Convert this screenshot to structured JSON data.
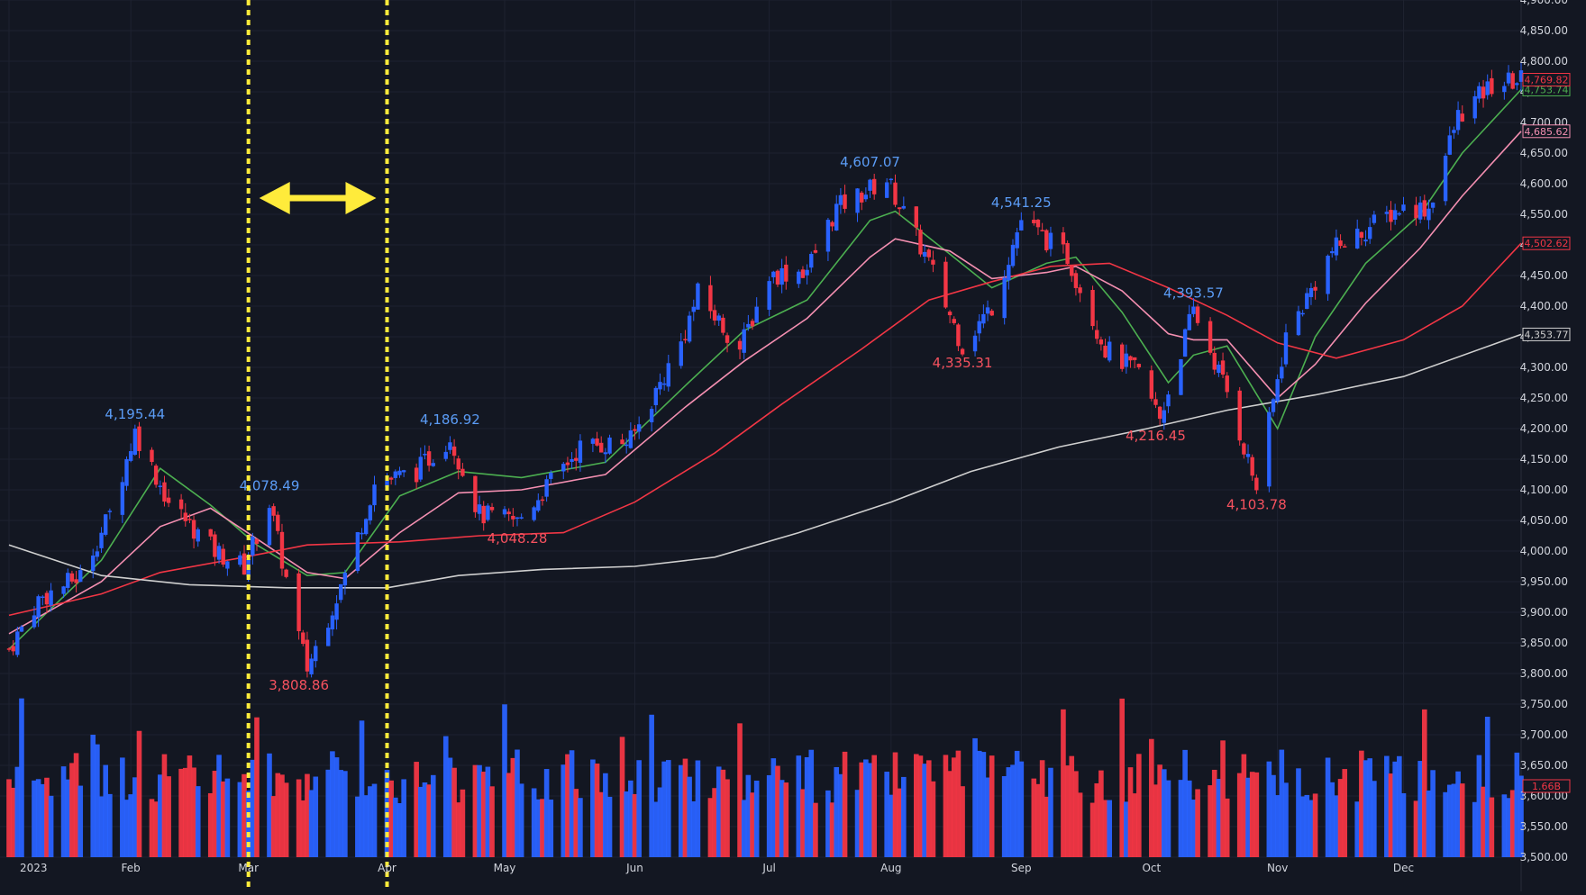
{
  "chart_data": {
    "type": "candlestick",
    "year_label": "2023",
    "x_labels": [
      "2023",
      "Feb",
      "Mar",
      "Apr",
      "May",
      "Jun",
      "Jul",
      "Aug",
      "Sep",
      "Oct",
      "Nov",
      "Dec"
    ],
    "month_starts": [
      "2023-01-03",
      "2023-02-01",
      "2023-03-01",
      "2023-04-03",
      "2023-05-01",
      "2023-06-01",
      "2023-07-03",
      "2023-08-01",
      "2023-09-01",
      "2023-10-02",
      "2023-11-01",
      "2023-12-01"
    ],
    "y_axis": {
      "ticks": [
        "3,500.00",
        "3,550.00",
        "3,600.00",
        "3,650.00",
        "3,700.00",
        "3,750.00",
        "3,800.00",
        "3,850.00",
        "3,900.00",
        "3,950.00",
        "4,000.00",
        "4,050.00",
        "4,100.00",
        "4,150.00",
        "4,200.00",
        "4,250.00",
        "4,300.00",
        "4,350.00",
        "4,400.00",
        "4,450.00",
        "4,500.00",
        "4,550.00",
        "4,600.00",
        "4,650.00",
        "4,700.00",
        "4,750.00",
        "4,800.00",
        "4,850.00",
        "4,900.00"
      ],
      "range": [
        3500,
        4900
      ]
    },
    "price_path_ohlc_closes": [
      [
        "2023-01-03",
        3840
      ],
      [
        "2023-01-10",
        3920
      ],
      [
        "2023-01-20",
        3960
      ],
      [
        "2023-01-27",
        4060
      ],
      [
        "2023-02-02",
        4195.44
      ],
      [
        "2023-02-10",
        4080
      ],
      [
        "2023-02-21",
        4000
      ],
      [
        "2023-02-28",
        3975
      ],
      [
        "2023-03-06",
        4078.49
      ],
      [
        "2023-03-13",
        3860
      ],
      [
        "2023-03-15",
        3808.86
      ],
      [
        "2023-03-24",
        3960
      ],
      [
        "2023-03-31",
        4110
      ],
      [
        "2023-04-10",
        4130
      ],
      [
        "2023-04-18",
        4186.92
      ],
      [
        "2023-04-25",
        4060
      ],
      [
        "2023-05-04",
        4048.28
      ],
      [
        "2023-05-19",
        4170
      ],
      [
        "2023-05-31",
        4180
      ],
      [
        "2023-06-12",
        4340
      ],
      [
        "2023-06-16",
        4420
      ],
      [
        "2023-06-26",
        4330
      ],
      [
        "2023-07-03",
        4450
      ],
      [
        "2023-07-12",
        4460
      ],
      [
        "2023-07-19",
        4560
      ],
      [
        "2023-07-31",
        4607.07
      ],
      [
        "2023-08-10",
        4470
      ],
      [
        "2023-08-18",
        4335.31
      ],
      [
        "2023-08-25",
        4400
      ],
      [
        "2023-09-01",
        4541.25
      ],
      [
        "2023-09-12",
        4480
      ],
      [
        "2023-09-21",
        4330
      ],
      [
        "2023-09-29",
        4290
      ],
      [
        "2023-10-04",
        4216.45
      ],
      [
        "2023-10-12",
        4393.57
      ],
      [
        "2023-10-20",
        4260
      ],
      [
        "2023-10-27",
        4103.78
      ],
      [
        "2023-11-03",
        4350
      ],
      [
        "2023-11-14",
        4490
      ],
      [
        "2023-11-30",
        4560
      ],
      [
        "2023-12-07",
        4560
      ],
      [
        "2023-12-14",
        4710
      ],
      [
        "2023-12-22",
        4760
      ],
      [
        "2023-12-29",
        4769.82
      ]
    ],
    "peak_trough_labels": [
      {
        "date": "2023-02-02",
        "value": 4195.44,
        "text": "4,195.44",
        "kind": "high"
      },
      {
        "date": "2023-03-06",
        "value": 4078.49,
        "text": "4,078.49",
        "kind": "high"
      },
      {
        "date": "2023-03-13",
        "value": 3808.86,
        "text": "3,808.86",
        "kind": "low"
      },
      {
        "date": "2023-04-18",
        "value": 4186.92,
        "text": "4,186.92",
        "kind": "high"
      },
      {
        "date": "2023-05-04",
        "value": 4048.28,
        "text": "4,048.28",
        "kind": "low"
      },
      {
        "date": "2023-07-27",
        "value": 4607.07,
        "text": "4,607.07",
        "kind": "high"
      },
      {
        "date": "2023-08-18",
        "value": 4335.31,
        "text": "4,335.31",
        "kind": "low"
      },
      {
        "date": "2023-09-01",
        "value": 4541.25,
        "text": "4,541.25",
        "kind": "high"
      },
      {
        "date": "2023-10-03",
        "value": 4216.45,
        "text": "4,216.45",
        "kind": "low"
      },
      {
        "date": "2023-10-12",
        "value": 4393.57,
        "text": "4,393.57",
        "kind": "high"
      },
      {
        "date": "2023-10-27",
        "value": 4103.78,
        "text": "4,103.78",
        "kind": "low"
      }
    ],
    "moving_averages": [
      {
        "color": "#4caf50",
        "last_label": "4,753.74",
        "points": [
          [
            "2023-01-03",
            3840
          ],
          [
            "2023-01-25",
            3985
          ],
          [
            "2023-02-08",
            4135
          ],
          [
            "2023-02-20",
            4075
          ],
          [
            "2023-03-03",
            4010
          ],
          [
            "2023-03-15",
            3960
          ],
          [
            "2023-03-24",
            3965
          ],
          [
            "2023-04-06",
            4090
          ],
          [
            "2023-04-20",
            4130
          ],
          [
            "2023-05-05",
            4120
          ],
          [
            "2023-05-25",
            4145
          ],
          [
            "2023-06-13",
            4270
          ],
          [
            "2023-06-27",
            4360
          ],
          [
            "2023-07-12",
            4410
          ],
          [
            "2023-07-27",
            4540
          ],
          [
            "2023-08-02",
            4555
          ],
          [
            "2023-08-15",
            4485
          ],
          [
            "2023-08-25",
            4430
          ],
          [
            "2023-09-07",
            4470
          ],
          [
            "2023-09-14",
            4480
          ],
          [
            "2023-09-25",
            4390
          ],
          [
            "2023-10-06",
            4275
          ],
          [
            "2023-10-12",
            4320
          ],
          [
            "2023-10-20",
            4335
          ],
          [
            "2023-11-01",
            4200
          ],
          [
            "2023-11-10",
            4350
          ],
          [
            "2023-11-22",
            4470
          ],
          [
            "2023-12-05",
            4550
          ],
          [
            "2023-12-15",
            4650
          ],
          [
            "2023-12-29",
            4753.74
          ]
        ]
      },
      {
        "color": "#f48fb1",
        "last_label": "4,685.62",
        "points": [
          [
            "2023-01-03",
            3865
          ],
          [
            "2023-01-25",
            3950
          ],
          [
            "2023-02-08",
            4040
          ],
          [
            "2023-02-20",
            4070
          ],
          [
            "2023-03-03",
            4020
          ],
          [
            "2023-03-15",
            3965
          ],
          [
            "2023-03-24",
            3955
          ],
          [
            "2023-04-06",
            4030
          ],
          [
            "2023-04-20",
            4095
          ],
          [
            "2023-05-05",
            4100
          ],
          [
            "2023-05-25",
            4125
          ],
          [
            "2023-06-13",
            4235
          ],
          [
            "2023-06-27",
            4310
          ],
          [
            "2023-07-12",
            4380
          ],
          [
            "2023-07-27",
            4480
          ],
          [
            "2023-08-02",
            4510
          ],
          [
            "2023-08-15",
            4490
          ],
          [
            "2023-08-25",
            4445
          ],
          [
            "2023-09-07",
            4455
          ],
          [
            "2023-09-14",
            4465
          ],
          [
            "2023-09-25",
            4425
          ],
          [
            "2023-10-06",
            4355
          ],
          [
            "2023-10-12",
            4345
          ],
          [
            "2023-10-20",
            4345
          ],
          [
            "2023-11-01",
            4250
          ],
          [
            "2023-11-10",
            4305
          ],
          [
            "2023-11-22",
            4405
          ],
          [
            "2023-12-05",
            4495
          ],
          [
            "2023-12-15",
            4580
          ],
          [
            "2023-12-29",
            4685.62
          ]
        ]
      },
      {
        "color": "#f23645",
        "last_label": "4,502.62",
        "points": [
          [
            "2023-01-03",
            3895
          ],
          [
            "2023-01-25",
            3930
          ],
          [
            "2023-02-08",
            3965
          ],
          [
            "2023-02-28",
            3990
          ],
          [
            "2023-03-15",
            4010
          ],
          [
            "2023-04-06",
            4015
          ],
          [
            "2023-04-25",
            4025
          ],
          [
            "2023-05-15",
            4030
          ],
          [
            "2023-06-01",
            4080
          ],
          [
            "2023-06-20",
            4160
          ],
          [
            "2023-07-06",
            4240
          ],
          [
            "2023-07-25",
            4330
          ],
          [
            "2023-08-10",
            4410
          ],
          [
            "2023-08-25",
            4440
          ],
          [
            "2023-09-08",
            4465
          ],
          [
            "2023-09-22",
            4470
          ],
          [
            "2023-10-06",
            4430
          ],
          [
            "2023-10-20",
            4385
          ],
          [
            "2023-11-01",
            4340
          ],
          [
            "2023-11-15",
            4315
          ],
          [
            "2023-12-01",
            4345
          ],
          [
            "2023-12-15",
            4400
          ],
          [
            "2023-12-29",
            4502.62
          ]
        ]
      },
      {
        "color": "#cfcfcf",
        "last_label": "4,353.77",
        "points": [
          [
            "2023-01-03",
            4010
          ],
          [
            "2023-01-25",
            3960
          ],
          [
            "2023-02-15",
            3945
          ],
          [
            "2023-03-10",
            3940
          ],
          [
            "2023-04-03",
            3940
          ],
          [
            "2023-04-20",
            3960
          ],
          [
            "2023-05-10",
            3970
          ],
          [
            "2023-06-01",
            3975
          ],
          [
            "2023-06-20",
            3990
          ],
          [
            "2023-07-10",
            4030
          ],
          [
            "2023-08-01",
            4080
          ],
          [
            "2023-08-20",
            4130
          ],
          [
            "2023-09-10",
            4170
          ],
          [
            "2023-10-01",
            4200
          ],
          [
            "2023-10-20",
            4230
          ],
          [
            "2023-11-10",
            4255
          ],
          [
            "2023-12-01",
            4285
          ],
          [
            "2023-12-29",
            4353.77
          ]
        ]
      }
    ],
    "price_label": {
      "text": "4,769.82",
      "color": "#f23645",
      "value": 4769.82
    },
    "volume": {
      "last_label": "1.66B",
      "max_billion": 3.5
    },
    "annotations": {
      "dotted_lines_dates": [
        "2023-03-01",
        "2023-04-03"
      ],
      "arrow": "double-headed",
      "highlight_color": "#ffeb3b"
    },
    "colors": {
      "up": "#2962ff",
      "down": "#f23645",
      "background": "#131722",
      "grid": "#1e2230",
      "axis_text": "#d1d4dc"
    }
  }
}
